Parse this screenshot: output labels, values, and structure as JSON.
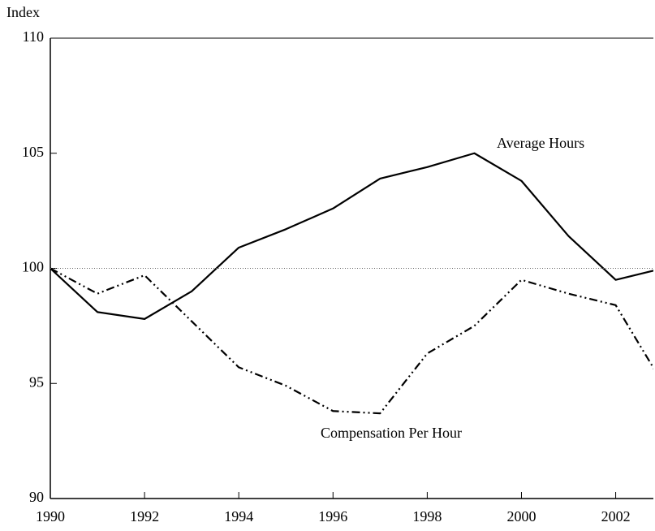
{
  "chart_data": {
    "type": "line",
    "y_label": "Index",
    "x": [
      1990,
      1991,
      1992,
      1993,
      1994,
      1995,
      1996,
      1997,
      1998,
      1999,
      2000,
      2001,
      2002,
      2003
    ],
    "series": [
      {
        "name": "Average Hours",
        "color": "#000000",
        "style": "solid",
        "values": [
          100,
          98.1,
          97.8,
          99.0,
          100.9,
          101.7,
          102.6,
          103.9,
          104.4,
          105.0,
          103.8,
          101.4,
          99.5,
          100.0
        ]
      },
      {
        "name": "Compensation Per Hour",
        "color": "#000000",
        "style": "dashdotdot",
        "values": [
          100,
          98.9,
          99.7,
          97.7,
          95.7,
          94.9,
          93.8,
          93.7,
          96.3,
          97.5,
          99.5,
          98.9,
          98.4,
          95.0
        ]
      }
    ],
    "reference_line": 100,
    "xlim": [
      1990,
      2002.8
    ],
    "xticks": [
      1990,
      1992,
      1994,
      1996,
      1998,
      2000,
      2002
    ],
    "ylim": [
      90,
      110
    ],
    "yticks": [
      90,
      95,
      100,
      105,
      110
    ],
    "grid": false
  }
}
